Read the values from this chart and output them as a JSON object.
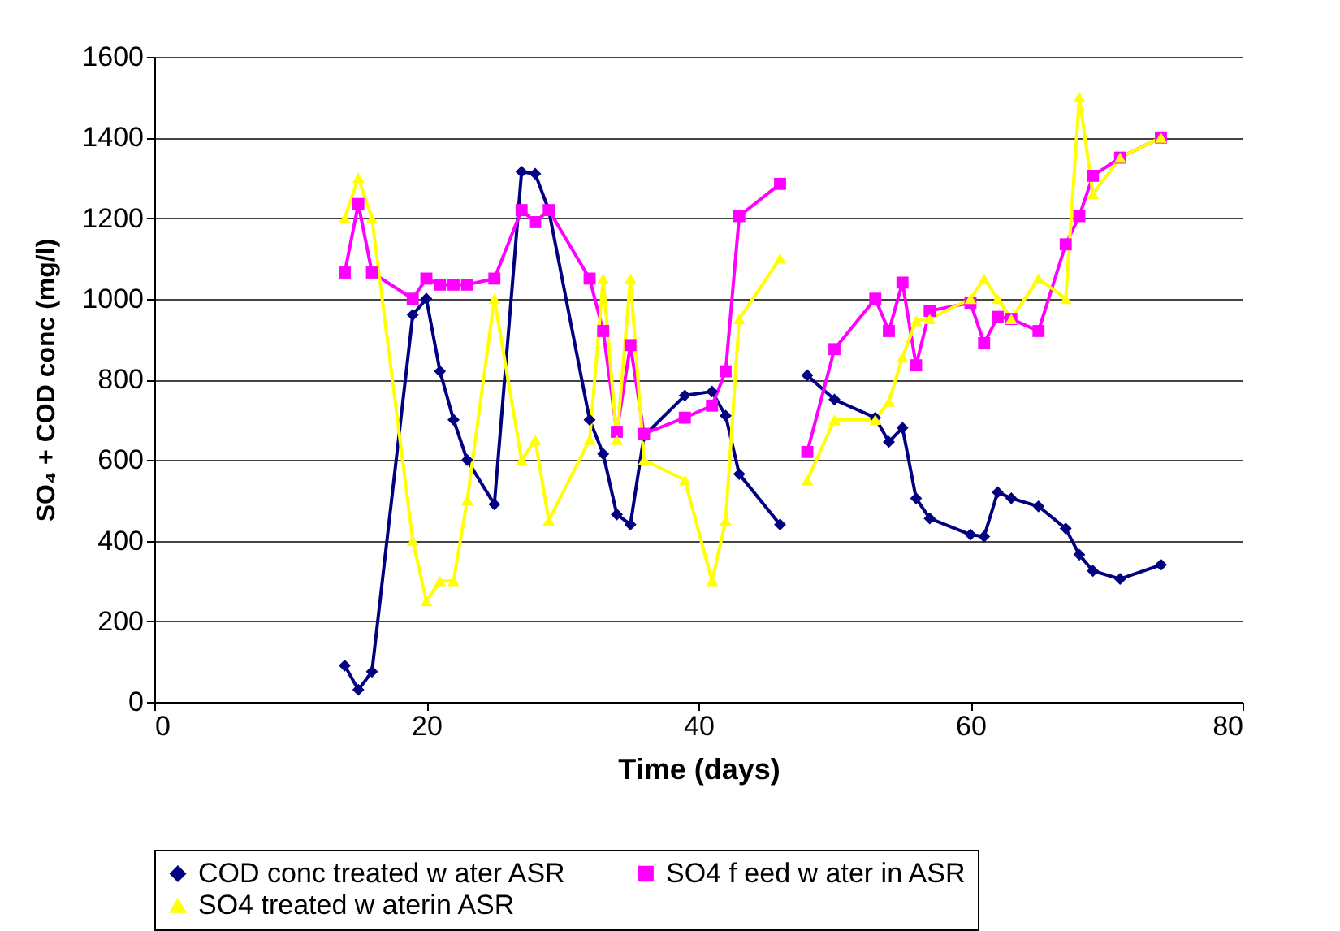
{
  "chart_data": {
    "type": "line",
    "xlabel": "Time (days)",
    "ylabel": "SO₄ + COD conc (mg/l)",
    "xlim": [
      0,
      80
    ],
    "xticks": [
      0,
      20,
      40,
      60,
      80
    ],
    "ylim": [
      0,
      1600
    ],
    "yticks": [
      0,
      200,
      400,
      600,
      800,
      1000,
      1200,
      1400,
      1600
    ],
    "grid": "y",
    "legend": "bottom",
    "series": [
      {
        "name": "COD conc treated w ater ASR",
        "color": "#000080",
        "marker": "diamond",
        "x": [
          14,
          15,
          16,
          19,
          20,
          21,
          22,
          23,
          25,
          27,
          28,
          29,
          32,
          33,
          34,
          35,
          36,
          39,
          41,
          42,
          43,
          46,
          47,
          48,
          50,
          53,
          54,
          55,
          56,
          57,
          60,
          61,
          62,
          63,
          65,
          67,
          68,
          69,
          71,
          74
        ],
        "values": [
          90,
          30,
          75,
          960,
          1000,
          820,
          700,
          600,
          490,
          1315,
          1310,
          1220,
          700,
          615,
          465,
          440,
          660,
          760,
          770,
          710,
          565,
          440,
          null,
          810,
          750,
          705,
          645,
          680,
          505,
          455,
          415,
          410,
          520,
          505,
          485,
          430,
          365,
          325,
          305,
          340
        ]
      },
      {
        "name": "SO4 f eed w ater in ASR",
        "color": "#ff00ff",
        "marker": "square",
        "x": [
          14,
          15,
          16,
          19,
          20,
          21,
          22,
          23,
          25,
          27,
          28,
          29,
          32,
          33,
          34,
          35,
          36,
          39,
          41,
          42,
          43,
          46,
          47,
          48,
          50,
          53,
          54,
          55,
          56,
          57,
          60,
          61,
          62,
          63,
          65,
          67,
          68,
          69,
          71,
          74
        ],
        "values": [
          1065,
          1235,
          1065,
          1000,
          1050,
          1035,
          1035,
          1035,
          1050,
          1220,
          1190,
          1220,
          1050,
          920,
          670,
          885,
          665,
          705,
          735,
          820,
          1205,
          1285,
          null,
          620,
          875,
          1000,
          920,
          1040,
          835,
          970,
          990,
          890,
          955,
          950,
          920,
          1135,
          1205,
          1305,
          1350,
          1400
        ]
      },
      {
        "name": "SO4 treated w aterin ASR",
        "color": "#ffff00",
        "marker": "triangle",
        "x": [
          14,
          15,
          16,
          19,
          20,
          21,
          22,
          23,
          25,
          27,
          28,
          29,
          32,
          33,
          34,
          35,
          36,
          39,
          41,
          42,
          43,
          46,
          47,
          48,
          50,
          53,
          54,
          55,
          56,
          57,
          60,
          61,
          62,
          63,
          65,
          67,
          68,
          69,
          71,
          74
        ],
        "values": [
          1200,
          1300,
          1200,
          400,
          250,
          300,
          300,
          500,
          1000,
          600,
          650,
          450,
          650,
          1050,
          650,
          1050,
          600,
          550,
          300,
          450,
          950,
          1100,
          null,
          550,
          700,
          700,
          745,
          855,
          945,
          950,
          1000,
          1050,
          1000,
          950,
          1050,
          1000,
          1500,
          1260,
          1350,
          1400
        ]
      }
    ]
  }
}
